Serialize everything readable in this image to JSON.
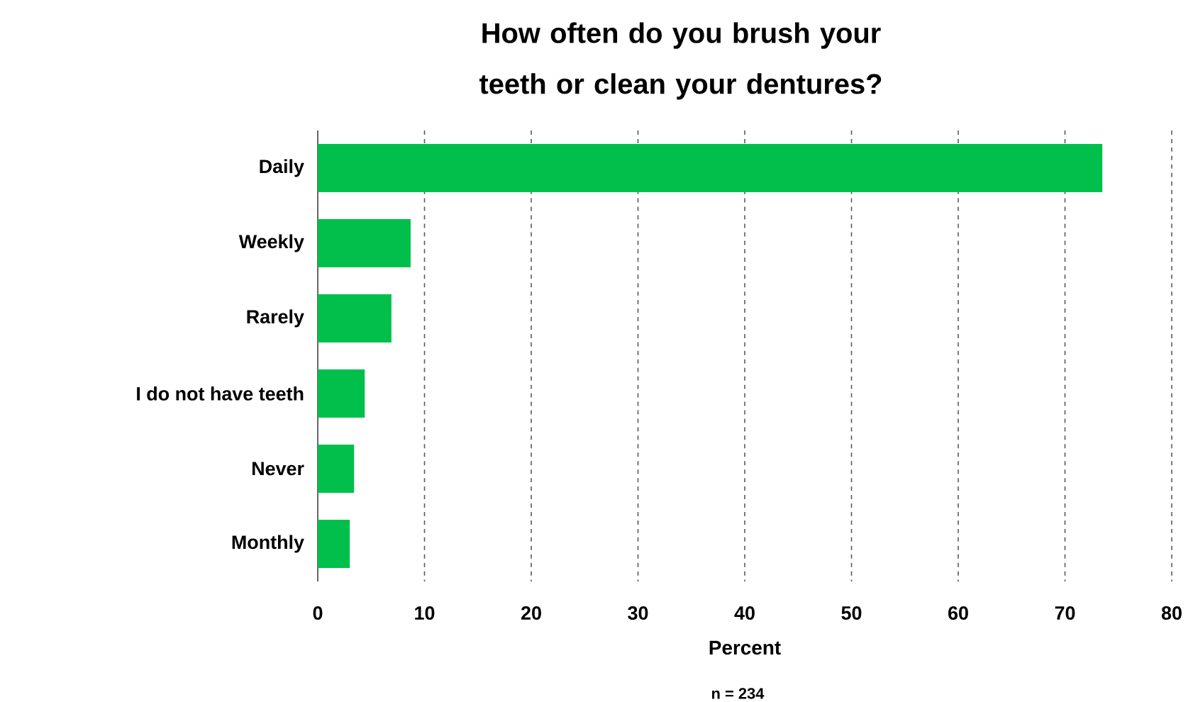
{
  "chart_data": {
    "type": "bar",
    "orientation": "horizontal",
    "title": "How often do you brush your teeth or clean your dentures?",
    "categories": [
      "Daily",
      "Weekly",
      "Rarely",
      "I do not have teeth",
      "Never",
      "Monthly"
    ],
    "values": [
      73.5,
      8.7,
      6.9,
      4.4,
      3.4,
      3.0
    ],
    "color": "#00c04b",
    "xlim": [
      0,
      80
    ],
    "xticks": [
      0,
      10,
      20,
      30,
      40,
      50,
      60,
      70,
      80
    ],
    "xlabel": "Percent",
    "annotations": [
      "n = 234"
    ],
    "grid": "x"
  }
}
